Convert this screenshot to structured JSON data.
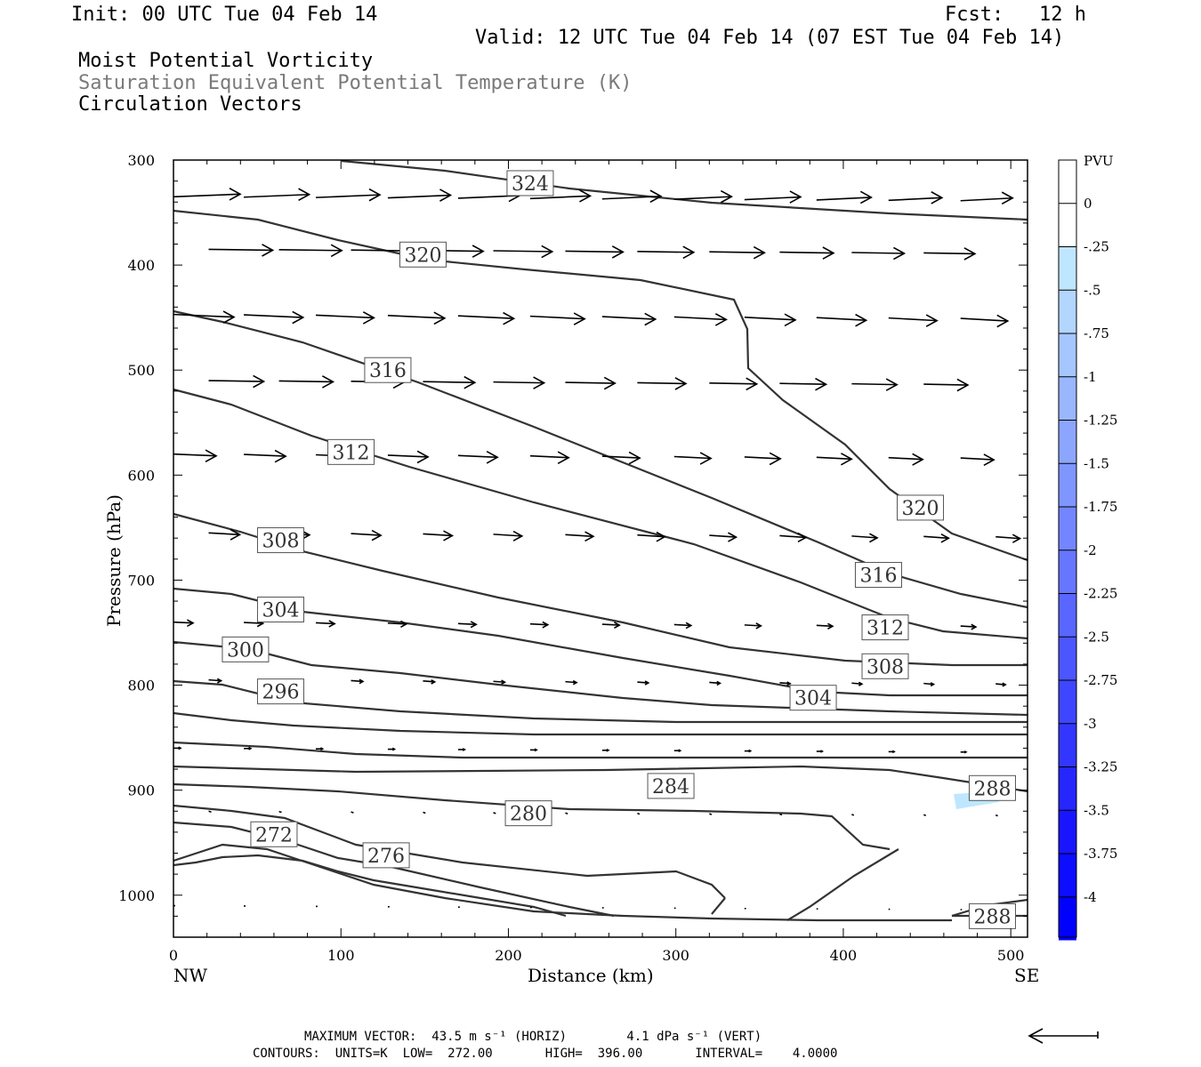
{
  "header": {
    "init": "Init: 00 UTC Tue 04 Feb 14",
    "fcst": "Fcst:   12 h",
    "valid": "Valid: 12 UTC Tue 04 Feb 14 (07 EST Tue 04 Feb 14)",
    "field1": "Moist Potential Vorticity",
    "field2": "Saturation Equivalent Potential Temperature (K)",
    "field3": "Circulation Vectors"
  },
  "footer": {
    "max_vector": "MAXIMUM VECTOR:  43.5 m s⁻¹ (HORIZ)        4.1 dPa s⁻¹ (VERT)",
    "contours": "CONTOURS:  UNITS=K  LOW=  272.00       HIGH=  396.00       INTERVAL=    4.0000"
  },
  "chart_data": {
    "type": "line",
    "xlabel": "Distance (km)",
    "ylabel": "Pressure (hPa)",
    "xlim": [
      0,
      510
    ],
    "ylim": [
      300,
      1040
    ],
    "x_ticks": [
      "0",
      "100",
      "200",
      "300",
      "400",
      "500"
    ],
    "y_ticks": [
      "300",
      "400",
      "500",
      "600",
      "700",
      "800",
      "900",
      "1000"
    ],
    "left_end_label": "NW",
    "right_end_label": "SE",
    "contour_labels": [
      {
        "text": "324",
        "x": 213,
        "y": 322
      },
      {
        "text": "320",
        "x": 149,
        "y": 390
      },
      {
        "text": "316",
        "x": 128,
        "y": 500
      },
      {
        "text": "312",
        "x": 106,
        "y": 578
      },
      {
        "text": "320",
        "x": 446,
        "y": 631
      },
      {
        "text": "308",
        "x": 64,
        "y": 662
      },
      {
        "text": "316",
        "x": 421,
        "y": 695
      },
      {
        "text": "304",
        "x": 64,
        "y": 728
      },
      {
        "text": "312",
        "x": 425,
        "y": 745
      },
      {
        "text": "300",
        "x": 43,
        "y": 766
      },
      {
        "text": "308",
        "x": 425,
        "y": 782
      },
      {
        "text": "296",
        "x": 64,
        "y": 806
      },
      {
        "text": "304",
        "x": 382,
        "y": 812
      },
      {
        "text": "284",
        "x": 297,
        "y": 896
      },
      {
        "text": "288",
        "x": 489,
        "y": 898
      },
      {
        "text": "280",
        "x": 212,
        "y": 922
      },
      {
        "text": "272",
        "x": 60,
        "y": 942
      },
      {
        "text": "276",
        "x": 127,
        "y": 962
      },
      {
        "text": "288",
        "x": 489,
        "y": 1020
      }
    ],
    "colorbar": {
      "title": "PVU",
      "labels": [
        "0",
        "-.25",
        "-.5",
        "-.75",
        "-1",
        "-1.25",
        "-1.5",
        "-1.75",
        "-2",
        "-2.25",
        "-2.5",
        "-2.75",
        "-3",
        "-3.25",
        "-3.5",
        "-3.75",
        "-4"
      ],
      "colors": [
        "#ffffff",
        "#bfe6ff",
        "#b3d6ff",
        "#a6c6ff",
        "#99b6ff",
        "#8ca6ff",
        "#7f96ff",
        "#7386ff",
        "#6676ff",
        "#5966ff",
        "#4c56ff",
        "#3f46ff",
        "#3336ff",
        "#2626ff",
        "#1916ff",
        "#0d0dff",
        "#0000ff"
      ]
    },
    "max_arrow_direction": "left"
  }
}
